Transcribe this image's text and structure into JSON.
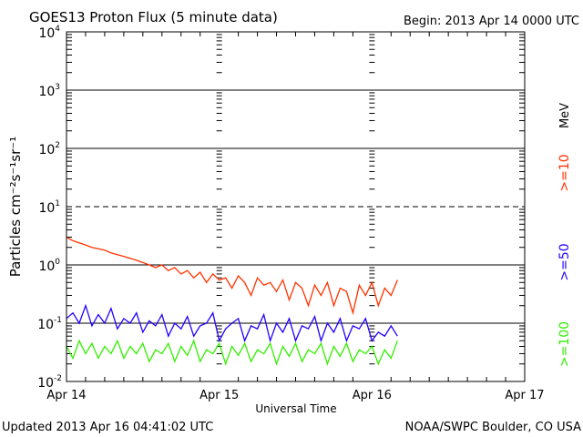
{
  "header": {
    "title": "GOES13 Proton Flux (5 minute data)",
    "begin": "Begin: 2013 Apr 14 0000 UTC"
  },
  "footer": {
    "updated": "Updated 2013 Apr 16 04:41:02 UTC",
    "credit": "NOAA/SWPC Boulder, CO USA"
  },
  "chart_data": {
    "type": "line",
    "title": "GOES13 Proton Flux (5 minute data)",
    "xlabel": "Universal Time",
    "ylabel": "Particles cm⁻²s⁻¹sr⁻¹",
    "yscale": "log",
    "ylim": [
      0.01,
      10000
    ],
    "xlim_hours": [
      0,
      72
    ],
    "x_tick_labels": [
      "Apr 14",
      "Apr 15",
      "Apr 16",
      "Apr 17"
    ],
    "y_tick_labels": [
      {
        "base": "10",
        "exp": "4",
        "value": 10000
      },
      {
        "base": "10",
        "exp": "3",
        "value": 1000
      },
      {
        "base": "10",
        "exp": "2",
        "value": 100
      },
      {
        "base": "10",
        "exp": "1",
        "value": 10
      },
      {
        "base": "10",
        "exp": "0",
        "value": 1
      },
      {
        "base": "10",
        "exp": "-1",
        "value": 0.1
      },
      {
        "base": "10",
        "exp": "-2",
        "value": 0.01
      }
    ],
    "units_label": "MeV",
    "x_hours": [
      0,
      1,
      2,
      3,
      4,
      5,
      6,
      7,
      8,
      9,
      10,
      11,
      12,
      13,
      14,
      15,
      16,
      17,
      18,
      19,
      20,
      21,
      22,
      23,
      24,
      25,
      26,
      27,
      28,
      29,
      30,
      31,
      32,
      33,
      34,
      35,
      36,
      37,
      38,
      39,
      40,
      41,
      42,
      43,
      44,
      45,
      46,
      47,
      48,
      49,
      50,
      51,
      52
    ],
    "series": [
      {
        "name": ">=10",
        "color": "#ff3300",
        "values": [
          3.0,
          2.6,
          2.4,
          2.2,
          2.0,
          1.9,
          1.8,
          1.6,
          1.5,
          1.4,
          1.3,
          1.2,
          1.1,
          1.0,
          0.9,
          1.0,
          0.8,
          0.9,
          0.7,
          0.8,
          0.6,
          0.75,
          0.5,
          0.7,
          0.55,
          0.6,
          0.4,
          0.65,
          0.5,
          0.3,
          0.6,
          0.45,
          0.5,
          0.35,
          0.55,
          0.25,
          0.5,
          0.4,
          0.2,
          0.45,
          0.3,
          0.5,
          0.2,
          0.4,
          0.35,
          0.15,
          0.45,
          0.3,
          0.5,
          0.2,
          0.4,
          0.3,
          0.55
        ]
      },
      {
        "name": ">=50",
        "color": "#2200ff",
        "values": [
          0.12,
          0.15,
          0.1,
          0.2,
          0.09,
          0.14,
          0.1,
          0.18,
          0.08,
          0.12,
          0.1,
          0.15,
          0.07,
          0.11,
          0.09,
          0.14,
          0.06,
          0.1,
          0.08,
          0.13,
          0.06,
          0.09,
          0.1,
          0.15,
          0.05,
          0.08,
          0.1,
          0.12,
          0.05,
          0.09,
          0.08,
          0.14,
          0.05,
          0.1,
          0.07,
          0.12,
          0.05,
          0.09,
          0.08,
          0.13,
          0.05,
          0.1,
          0.07,
          0.12,
          0.05,
          0.09,
          0.08,
          0.12,
          0.05,
          0.07,
          0.06,
          0.09,
          0.06
        ]
      },
      {
        "name": ">=100",
        "color": "#33ee00",
        "values": [
          0.04,
          0.025,
          0.05,
          0.03,
          0.045,
          0.025,
          0.04,
          0.03,
          0.05,
          0.025,
          0.04,
          0.03,
          0.045,
          0.022,
          0.035,
          0.03,
          0.045,
          0.022,
          0.04,
          0.028,
          0.05,
          0.022,
          0.035,
          0.03,
          0.045,
          0.02,
          0.04,
          0.028,
          0.045,
          0.022,
          0.035,
          0.03,
          0.045,
          0.02,
          0.04,
          0.027,
          0.045,
          0.022,
          0.035,
          0.03,
          0.045,
          0.02,
          0.04,
          0.027,
          0.045,
          0.022,
          0.035,
          0.03,
          0.04,
          0.02,
          0.035,
          0.025,
          0.05
        ]
      }
    ]
  }
}
